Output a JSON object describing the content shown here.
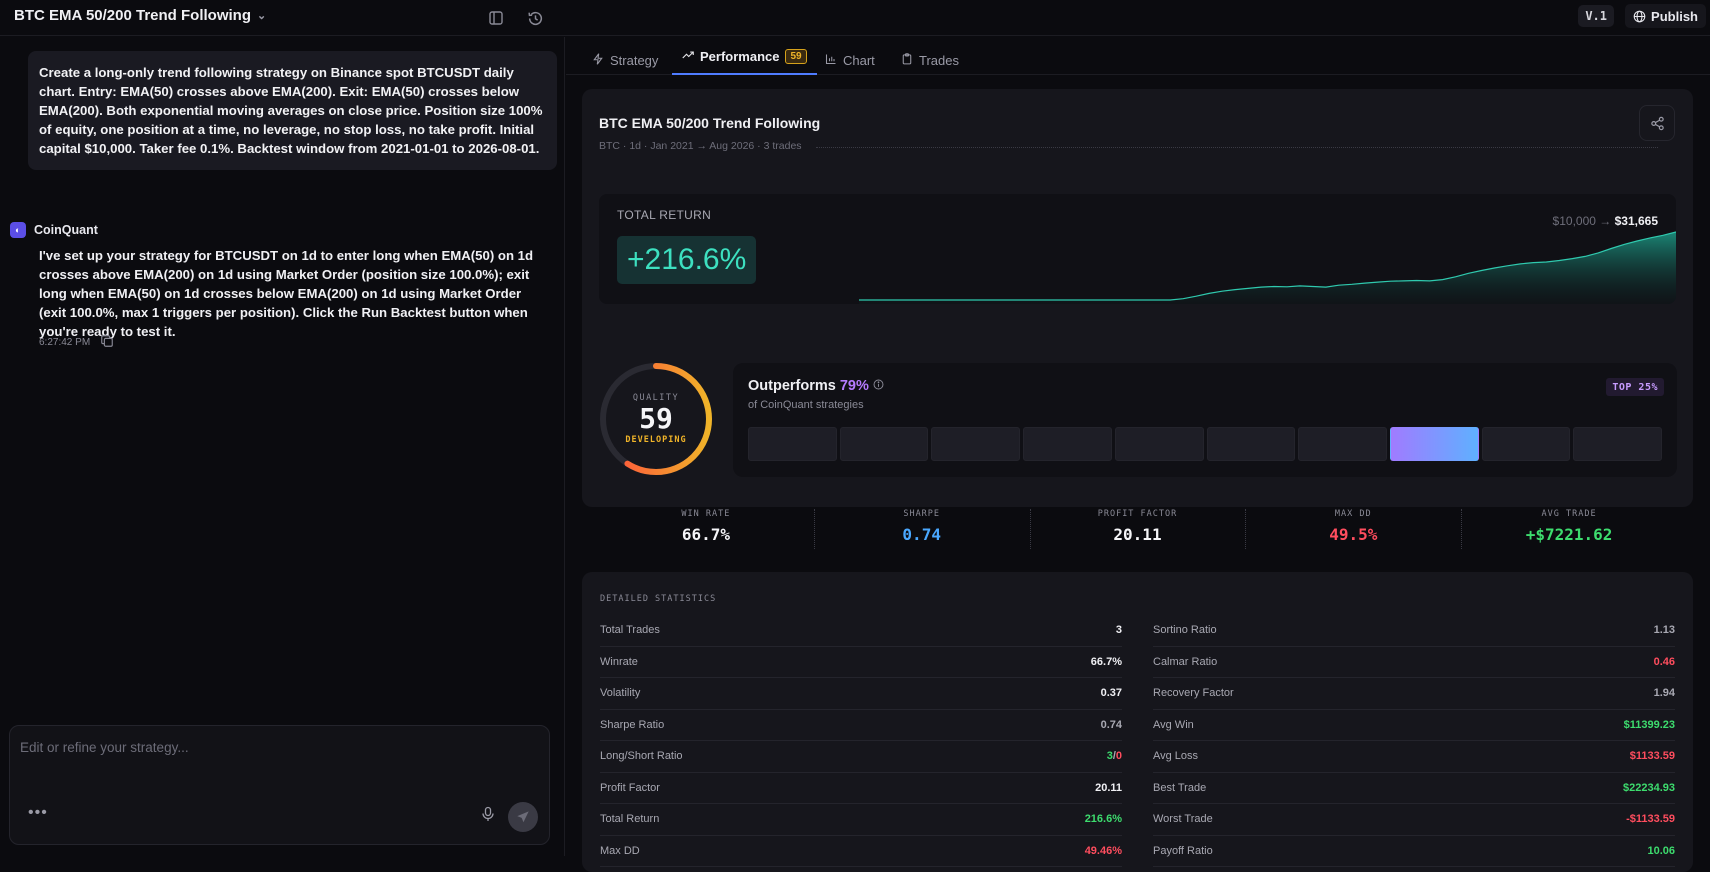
{
  "app": {
    "title": "BTC EMA 50/200 Trend Following",
    "version": "V.1",
    "publish_label": "Publish"
  },
  "chat": {
    "user_message": "Create a long-only trend following strategy on Binance spot BTCUSDT daily chart. Entry: EMA(50) crosses above EMA(200). Exit: EMA(50) crosses below EMA(200). Both exponential moving averages on close price. Position size 100% of equity, one position at a time, no leverage, no stop loss, no take profit. Initial capital $10,000. Taker fee 0.1%. Backtest window from 2021-01-01 to 2026-08-01.",
    "bot_name": "CoinQuant",
    "bot_message": "I've set up your strategy for BTCUSDT on 1d to enter long when EMA(50) on 1d crosses above EMA(200) on 1d using Market Order (position size 100.0%); exit long when EMA(50) on 1d crosses below EMA(200) on 1d using Market Order (exit 100.0%, max 1 triggers per position). Click the Run Backtest button when you're ready to test it.",
    "timestamp": "6:27:42 PM",
    "input_placeholder": "Edit or refine your strategy...",
    "more_label": "•••"
  },
  "tabs": [
    {
      "label": "Strategy"
    },
    {
      "label": "Performance",
      "badge": "59"
    },
    {
      "label": "Chart"
    },
    {
      "label": "Trades"
    }
  ],
  "performance": {
    "strategy_name": "BTC EMA 50/200 Trend Following",
    "meta": "BTC · 1d · Jan 2021 → Aug 2026 · 3 trades",
    "total_return_label": "TOTAL RETURN",
    "total_return": "+216.6%",
    "capital_from": "$10,000",
    "capital_arrow": " → ",
    "capital_to": "$31,665",
    "equity_curve": [
      10000,
      10000,
      10000,
      10000,
      10000,
      10000,
      10000,
      10000,
      10000,
      10000,
      10000,
      10000,
      10000,
      10000,
      10000,
      10000,
      10000,
      10000,
      10000,
      10000,
      10000,
      10000,
      10000,
      10000,
      10000,
      10400,
      11200,
      12100,
      12800,
      13300,
      13700,
      14100,
      14300,
      14200,
      14500,
      14300,
      14100,
      14700,
      15000,
      15400,
      15700,
      16000,
      16100,
      16200,
      16100,
      16500,
      17400,
      18500,
      19400,
      20200,
      20900,
      21500,
      21900,
      22100,
      22600,
      23200,
      23900,
      25000,
      26400,
      27700,
      28800,
      29800,
      30600,
      31665
    ],
    "quality": {
      "label": "QUALITY",
      "score": "59",
      "score_value": 59,
      "status": "DEVELOPING"
    },
    "outperforms": {
      "label": "Outperforms",
      "pct": "79%",
      "sub": "of CoinQuant strategies",
      "badge": "TOP 25%",
      "highlight_index": 7,
      "bucket_count": 10
    },
    "metrics": [
      {
        "label": "WIN RATE",
        "value": "66.7%",
        "color": "#f5f5f8"
      },
      {
        "label": "SHARPE",
        "value": "0.74",
        "color": "#4aa8ff"
      },
      {
        "label": "PROFIT FACTOR",
        "value": "20.11",
        "color": "#f5f5f8"
      },
      {
        "label": "MAX DD",
        "value": "49.5%",
        "color": "#ff4d5e"
      },
      {
        "label": "AVG TRADE",
        "value": "+$7221.62",
        "color": "#3ddc6e"
      }
    ]
  },
  "detailed": {
    "title": "DETAILED STATISTICS",
    "left": [
      {
        "label": "Total Trades",
        "value": "3",
        "tone": ""
      },
      {
        "label": "Winrate",
        "value": "66.7%",
        "tone": ""
      },
      {
        "label": "Volatility",
        "value": "0.37",
        "tone": ""
      },
      {
        "label": "Sharpe Ratio",
        "value": "0.74",
        "tone": "muted"
      },
      {
        "label": "Long/Short Ratio",
        "value_a": "3",
        "value_sep": "/",
        "value_b": "0"
      },
      {
        "label": "Profit Factor",
        "value": "20.11",
        "tone": ""
      },
      {
        "label": "Total Return",
        "value": "216.6%",
        "tone": "green"
      },
      {
        "label": "Max DD",
        "value": "49.46%",
        "tone": "red"
      }
    ],
    "right": [
      {
        "label": "Sortino Ratio",
        "value": "1.13",
        "tone": "muted"
      },
      {
        "label": "Calmar Ratio",
        "value": "0.46",
        "tone": "red"
      },
      {
        "label": "Recovery Factor",
        "value": "1.94",
        "tone": "muted"
      },
      {
        "label": "Avg Win",
        "value": "$11399.23",
        "tone": "green"
      },
      {
        "label": "Avg Loss",
        "value": "$1133.59",
        "tone": "red"
      },
      {
        "label": "Best Trade",
        "value": "$22234.93",
        "tone": "green"
      },
      {
        "label": "Worst Trade",
        "value": "-$1133.59",
        "tone": "red"
      },
      {
        "label": "Payoff Ratio",
        "value": "10.06",
        "tone": "green"
      }
    ]
  }
}
